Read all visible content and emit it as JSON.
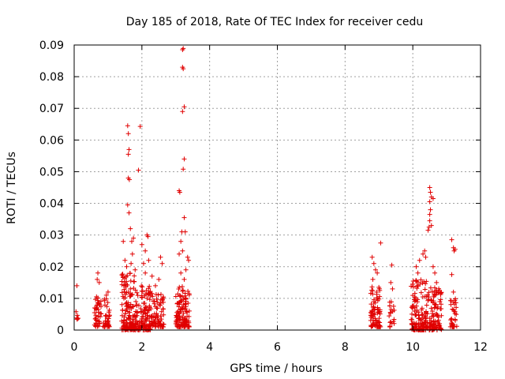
{
  "chart_data": {
    "type": "scatter",
    "title": "Day 185 of 2018, Rate Of TEC Index for receiver cedu",
    "xlabel": "GPS time / hours",
    "ylabel": "ROTI / TECUs",
    "xlim": [
      0,
      12
    ],
    "ylim": [
      0,
      0.09
    ],
    "x_ticks": [
      "0",
      "2",
      "4",
      "6",
      "8",
      "10",
      "12"
    ],
    "y_ticks": [
      "0",
      "0.01",
      "0.02",
      "0.03",
      "0.04",
      "0.05",
      "0.06",
      "0.07",
      "0.08",
      "0.09"
    ],
    "grid": true,
    "marker": "+",
    "color": "#e00000",
    "series": [
      {
        "name": "ROTI",
        "clusters": [
          {
            "x_range": [
              0.05,
              0.12
            ],
            "y_range": [
              0.003,
              0.006
            ],
            "count": 6
          },
          {
            "x_range": [
              0.6,
              0.8
            ],
            "y_range": [
              0.001,
              0.011
            ],
            "count": 45
          },
          {
            "x_range": [
              0.85,
              1.05
            ],
            "y_range": [
              0.001,
              0.01
            ],
            "count": 40
          },
          {
            "x_range": [
              1.4,
              1.8
            ],
            "y_range": [
              0.0,
              0.018
            ],
            "count": 140
          },
          {
            "x_range": [
              1.8,
              2.25
            ],
            "y_range": [
              0.0,
              0.014
            ],
            "count": 130
          },
          {
            "x_range": [
              2.25,
              2.65
            ],
            "y_range": [
              0.001,
              0.012
            ],
            "count": 80
          },
          {
            "x_range": [
              3.0,
              3.4
            ],
            "y_range": [
              0.001,
              0.014
            ],
            "count": 120
          },
          {
            "x_range": [
              8.75,
              9.05
            ],
            "y_range": [
              0.001,
              0.014
            ],
            "count": 80
          },
          {
            "x_range": [
              9.3,
              9.45
            ],
            "y_range": [
              0.001,
              0.01
            ],
            "count": 20
          },
          {
            "x_range": [
              9.95,
              10.4
            ],
            "y_range": [
              0.0,
              0.016
            ],
            "count": 130
          },
          {
            "x_range": [
              10.4,
              10.85
            ],
            "y_range": [
              0.0,
              0.014
            ],
            "count": 110
          },
          {
            "x_range": [
              11.1,
              11.3
            ],
            "y_range": [
              0.001,
              0.01
            ],
            "count": 35
          }
        ],
        "points": [
          {
            "x": 0.08,
            "y": 0.014
          },
          {
            "x": 0.7,
            "y": 0.018
          },
          {
            "x": 0.68,
            "y": 0.016
          },
          {
            "x": 0.74,
            "y": 0.015
          },
          {
            "x": 0.95,
            "y": 0.011
          },
          {
            "x": 1.0,
            "y": 0.012
          },
          {
            "x": 1.45,
            "y": 0.028
          },
          {
            "x": 1.5,
            "y": 0.022
          },
          {
            "x": 1.55,
            "y": 0.02
          },
          {
            "x": 1.58,
            "y": 0.0645
          },
          {
            "x": 1.6,
            "y": 0.062
          },
          {
            "x": 1.62,
            "y": 0.057
          },
          {
            "x": 1.6,
            "y": 0.0555
          },
          {
            "x": 1.6,
            "y": 0.048
          },
          {
            "x": 1.63,
            "y": 0.0475
          },
          {
            "x": 1.58,
            "y": 0.0395
          },
          {
            "x": 1.62,
            "y": 0.037
          },
          {
            "x": 1.66,
            "y": 0.032
          },
          {
            "x": 1.7,
            "y": 0.028
          },
          {
            "x": 1.75,
            "y": 0.029
          },
          {
            "x": 1.72,
            "y": 0.024
          },
          {
            "x": 1.68,
            "y": 0.021
          },
          {
            "x": 1.8,
            "y": 0.019
          },
          {
            "x": 1.9,
            "y": 0.0505
          },
          {
            "x": 1.95,
            "y": 0.0643
          },
          {
            "x": 2.0,
            "y": 0.027
          },
          {
            "x": 2.05,
            "y": 0.021
          },
          {
            "x": 2.1,
            "y": 0.025
          },
          {
            "x": 2.15,
            "y": 0.03
          },
          {
            "x": 2.18,
            "y": 0.0295
          },
          {
            "x": 2.2,
            "y": 0.022
          },
          {
            "x": 2.1,
            "y": 0.018
          },
          {
            "x": 2.3,
            "y": 0.017
          },
          {
            "x": 2.4,
            "y": 0.014
          },
          {
            "x": 2.55,
            "y": 0.023
          },
          {
            "x": 2.6,
            "y": 0.021
          },
          {
            "x": 2.5,
            "y": 0.016
          },
          {
            "x": 3.2,
            "y": 0.0885
          },
          {
            "x": 3.22,
            "y": 0.0889
          },
          {
            "x": 3.2,
            "y": 0.083
          },
          {
            "x": 3.22,
            "y": 0.0825
          },
          {
            "x": 3.25,
            "y": 0.0705
          },
          {
            "x": 3.2,
            "y": 0.069
          },
          {
            "x": 3.25,
            "y": 0.054
          },
          {
            "x": 3.22,
            "y": 0.0508
          },
          {
            "x": 3.1,
            "y": 0.044
          },
          {
            "x": 3.12,
            "y": 0.0435
          },
          {
            "x": 3.25,
            "y": 0.0355
          },
          {
            "x": 3.18,
            "y": 0.031
          },
          {
            "x": 3.28,
            "y": 0.031
          },
          {
            "x": 3.15,
            "y": 0.028
          },
          {
            "x": 3.2,
            "y": 0.025
          },
          {
            "x": 3.1,
            "y": 0.024
          },
          {
            "x": 3.35,
            "y": 0.023
          },
          {
            "x": 3.38,
            "y": 0.022
          },
          {
            "x": 3.3,
            "y": 0.019
          },
          {
            "x": 3.15,
            "y": 0.018
          },
          {
            "x": 3.25,
            "y": 0.016
          },
          {
            "x": 8.8,
            "y": 0.023
          },
          {
            "x": 8.85,
            "y": 0.021
          },
          {
            "x": 8.9,
            "y": 0.019
          },
          {
            "x": 8.95,
            "y": 0.018
          },
          {
            "x": 9.05,
            "y": 0.0275
          },
          {
            "x": 8.82,
            "y": 0.016
          },
          {
            "x": 9.38,
            "y": 0.0205
          },
          {
            "x": 9.35,
            "y": 0.015
          },
          {
            "x": 9.4,
            "y": 0.013
          },
          {
            "x": 10.1,
            "y": 0.02
          },
          {
            "x": 10.15,
            "y": 0.018
          },
          {
            "x": 10.2,
            "y": 0.022
          },
          {
            "x": 10.3,
            "y": 0.024
          },
          {
            "x": 10.35,
            "y": 0.025
          },
          {
            "x": 10.38,
            "y": 0.023
          },
          {
            "x": 10.45,
            "y": 0.0315
          },
          {
            "x": 10.48,
            "y": 0.0325
          },
          {
            "x": 10.5,
            "y": 0.0365
          },
          {
            "x": 10.52,
            "y": 0.038
          },
          {
            "x": 10.5,
            "y": 0.0405
          },
          {
            "x": 10.55,
            "y": 0.042
          },
          {
            "x": 10.6,
            "y": 0.0415
          },
          {
            "x": 10.5,
            "y": 0.045
          },
          {
            "x": 10.52,
            "y": 0.0435
          },
          {
            "x": 10.55,
            "y": 0.033
          },
          {
            "x": 10.5,
            "y": 0.0345
          },
          {
            "x": 10.6,
            "y": 0.02
          },
          {
            "x": 10.65,
            "y": 0.018
          },
          {
            "x": 10.7,
            "y": 0.015
          },
          {
            "x": 10.75,
            "y": 0.012
          },
          {
            "x": 11.15,
            "y": 0.0285
          },
          {
            "x": 11.2,
            "y": 0.026
          },
          {
            "x": 11.22,
            "y": 0.025
          },
          {
            "x": 11.25,
            "y": 0.0255
          },
          {
            "x": 11.15,
            "y": 0.0175
          },
          {
            "x": 11.2,
            "y": 0.012
          }
        ]
      }
    ]
  }
}
